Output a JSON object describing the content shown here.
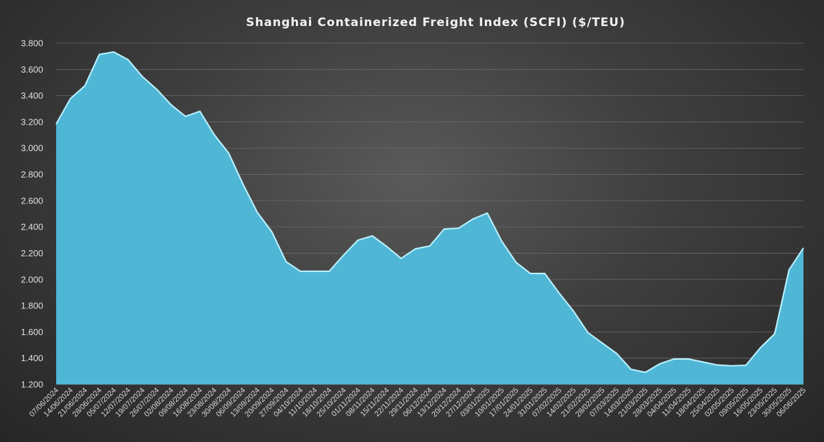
{
  "chart_data": {
    "type": "area",
    "title": "Shanghai Containerized Freight Index (SCFI) ($/TEU)",
    "xlabel": "",
    "ylabel": "",
    "ylim": [
      1200,
      3800
    ],
    "y_ticks": [
      1200,
      1400,
      1600,
      1800,
      2000,
      2200,
      2400,
      2600,
      2800,
      3000,
      3200,
      3400,
      3600,
      3800
    ],
    "y_tick_labels": [
      "1.200",
      "1.400",
      "1.600",
      "1.800",
      "2.000",
      "2.200",
      "2.400",
      "2.600",
      "2.800",
      "3.000",
      "3.200",
      "3.400",
      "3.600",
      "3.800"
    ],
    "grid": true,
    "legend": "none",
    "colors": {
      "fill": "#4fb6d6",
      "edge": "#b7eefb",
      "grid": "#6a6a6a"
    },
    "x": [
      "07/06/2024",
      "14/06/2024",
      "21/06/2024",
      "28/06/2024",
      "05/07/2024",
      "12/07/2024",
      "19/07/2024",
      "26/07/2024",
      "02/08/2024",
      "09/08/2024",
      "16/08/2024",
      "23/08/2024",
      "30/08/2024",
      "06/09/2024",
      "13/09/2024",
      "20/09/2024",
      "27/09/2024",
      "04/10/2024",
      "11/10/2024",
      "18/10/2024",
      "25/10/2024",
      "01/11/2024",
      "08/11/2024",
      "15/11/2024",
      "22/11/2024",
      "29/11/2024",
      "06/12/2024",
      "13/12/2024",
      "20/12/2024",
      "27/12/2024",
      "03/01/2025",
      "10/01/2025",
      "17/01/2025",
      "24/01/2025",
      "31/01/2025",
      "07/02/2025",
      "14/02/2025",
      "21/02/2025",
      "28/02/2025",
      "07/03/2025",
      "14/03/2025",
      "21/03/2025",
      "28/03/2025",
      "04/04/2025",
      "11/04/2025",
      "18/04/2025",
      "25/04/2025",
      "02/05/2025",
      "09/05/2025",
      "16/05/2025",
      "23/05/2025",
      "30/05/2025",
      "06/06/2025"
    ],
    "series": [
      {
        "values": [
          3184,
          3379,
          3475,
          3714,
          3733,
          3674,
          3545,
          3448,
          3330,
          3242,
          3281,
          3102,
          2963,
          2726,
          2510,
          2364,
          2135,
          2062,
          2062,
          2062,
          2185,
          2299,
          2332,
          2251,
          2160,
          2233,
          2255,
          2384,
          2390,
          2460,
          2505,
          2292,
          2130,
          2045,
          2045,
          1896,
          1758,
          1595,
          1515,
          1436,
          1315,
          1292,
          1357,
          1394,
          1394,
          1371,
          1348,
          1342,
          1346,
          1479,
          1586,
          2073,
          2240
        ]
      }
    ]
  }
}
